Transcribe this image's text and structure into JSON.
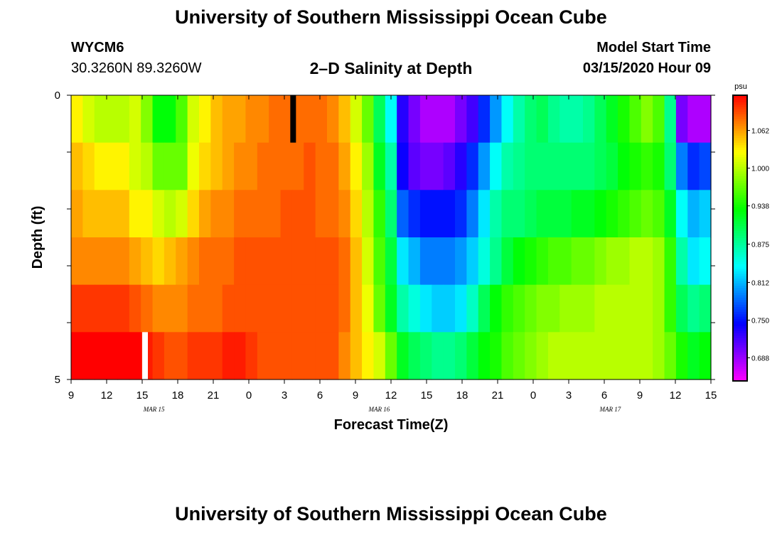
{
  "header": {
    "title": "University of Southern Mississippi Ocean Cube",
    "station": "WYCM6",
    "coordinates": "30.3260N 89.3260W",
    "plot_title": "2–D Salinity at Depth",
    "model_start_label": "Model Start Time",
    "model_start_value": "03/15/2020 Hour 09"
  },
  "footer": {
    "title": "University of Southern Mississippi Ocean Cube"
  },
  "chart_data": {
    "type": "heatmap",
    "xlabel": "Forecast Time(Z)",
    "ylabel": "Depth (ft)",
    "x_ticks": [
      "9",
      "12",
      "15",
      "18",
      "21",
      "0",
      "3",
      "6",
      "9",
      "12",
      "15",
      "18",
      "21",
      "0",
      "3",
      "6",
      "9",
      "12",
      "15"
    ],
    "date_labels": [
      {
        "label": "MAR 15",
        "hours_from_start": 7
      },
      {
        "label": "MAR 16",
        "hours_from_start": 26
      },
      {
        "label": "MAR 17",
        "hours_from_start": 45.5
      }
    ],
    "x_range_hours": [
      0,
      54
    ],
    "y_range": [
      0,
      5
    ],
    "y_tick_labels": [
      {
        "value": 0,
        "label": "0"
      },
      {
        "value": 1,
        "label": ""
      },
      {
        "value": 2,
        "label": ""
      },
      {
        "value": 3,
        "label": ""
      },
      {
        "value": 4,
        "label": ""
      },
      {
        "value": 5,
        "label": "5"
      }
    ],
    "colorbar": {
      "unit": "psu",
      "ticks": [
        "1.062",
        "1.000",
        "0.938",
        "0.875",
        "0.812",
        "0.750",
        "0.688"
      ],
      "range": [
        0.65,
        1.12
      ]
    },
    "values": [
      [
        1.03,
        1.01,
        1.0,
        1.0,
        1.0,
        1.01,
        0.98,
        0.93,
        0.93,
        0.96,
        1.01,
        1.03,
        1.05,
        1.06,
        1.06,
        1.07,
        1.07,
        1.08,
        1.08,
        1.08,
        1.08,
        1.08,
        1.07,
        1.05,
        1.01,
        0.97,
        0.9,
        0.84,
        0.73,
        0.7,
        0.68,
        0.68,
        0.68,
        0.7,
        0.72,
        0.76,
        0.8,
        0.84,
        0.87,
        0.89,
        0.9,
        0.88,
        0.87,
        0.87,
        0.88,
        0.9,
        0.92,
        0.94,
        0.96,
        0.98,
        0.96,
        0.88,
        0.7,
        0.68,
        0.68
      ],
      [
        1.05,
        1.04,
        1.03,
        1.03,
        1.03,
        1.01,
        1.0,
        0.97,
        0.97,
        0.97,
        1.02,
        1.04,
        1.05,
        1.06,
        1.07,
        1.07,
        1.08,
        1.08,
        1.08,
        1.08,
        1.09,
        1.08,
        1.08,
        1.06,
        1.03,
        0.99,
        0.92,
        0.87,
        0.74,
        0.71,
        0.7,
        0.7,
        0.71,
        0.73,
        0.76,
        0.8,
        0.84,
        0.87,
        0.88,
        0.89,
        0.89,
        0.89,
        0.89,
        0.89,
        0.89,
        0.9,
        0.91,
        0.93,
        0.94,
        0.95,
        0.94,
        0.89,
        0.79,
        0.76,
        0.77
      ],
      [
        1.06,
        1.05,
        1.05,
        1.05,
        1.05,
        1.03,
        1.03,
        1.01,
        1.0,
        1.01,
        1.04,
        1.06,
        1.07,
        1.07,
        1.08,
        1.08,
        1.08,
        1.08,
        1.09,
        1.09,
        1.09,
        1.08,
        1.08,
        1.07,
        1.04,
        1.0,
        0.95,
        0.89,
        0.78,
        0.76,
        0.75,
        0.75,
        0.75,
        0.76,
        0.79,
        0.83,
        0.87,
        0.89,
        0.89,
        0.9,
        0.91,
        0.91,
        0.91,
        0.92,
        0.92,
        0.93,
        0.94,
        0.95,
        0.96,
        0.97,
        0.96,
        0.92,
        0.84,
        0.81,
        0.82
      ],
      [
        1.07,
        1.07,
        1.07,
        1.07,
        1.07,
        1.06,
        1.05,
        1.04,
        1.05,
        1.06,
        1.07,
        1.08,
        1.08,
        1.08,
        1.09,
        1.09,
        1.09,
        1.09,
        1.09,
        1.09,
        1.09,
        1.09,
        1.09,
        1.08,
        1.05,
        1.01,
        0.96,
        0.91,
        0.83,
        0.81,
        0.79,
        0.79,
        0.79,
        0.8,
        0.82,
        0.85,
        0.88,
        0.91,
        0.93,
        0.94,
        0.95,
        0.96,
        0.96,
        0.97,
        0.97,
        0.98,
        0.99,
        0.99,
        1.0,
        1.0,
        0.99,
        0.95,
        0.87,
        0.83,
        0.84
      ],
      [
        1.1,
        1.1,
        1.1,
        1.1,
        1.1,
        1.09,
        1.08,
        1.07,
        1.07,
        1.07,
        1.08,
        1.08,
        1.08,
        1.09,
        1.09,
        1.09,
        1.09,
        1.09,
        1.09,
        1.09,
        1.09,
        1.09,
        1.09,
        1.08,
        1.05,
        1.02,
        0.97,
        0.92,
        0.87,
        0.85,
        0.83,
        0.82,
        0.82,
        0.83,
        0.86,
        0.9,
        0.93,
        0.95,
        0.96,
        0.97,
        0.98,
        0.98,
        0.99,
        0.99,
        0.99,
        1.0,
        1.0,
        1.0,
        1.0,
        1.0,
        0.99,
        0.95,
        0.9,
        0.88,
        0.89
      ],
      [
        1.13,
        1.13,
        1.12,
        1.12,
        1.12,
        1.12,
        1.11,
        1.1,
        1.09,
        1.09,
        1.1,
        1.1,
        1.1,
        1.11,
        1.11,
        1.1,
        1.09,
        1.09,
        1.09,
        1.09,
        1.09,
        1.09,
        1.09,
        1.07,
        1.05,
        1.03,
        1.01,
        0.97,
        0.92,
        0.9,
        0.89,
        0.88,
        0.88,
        0.89,
        0.91,
        0.93,
        0.94,
        0.96,
        0.97,
        0.98,
        0.99,
        1.0,
        1.0,
        1.0,
        1.0,
        1.0,
        1.0,
        1.0,
        1.0,
        1.0,
        0.99,
        0.97,
        0.94,
        0.92,
        0.93
      ]
    ]
  }
}
